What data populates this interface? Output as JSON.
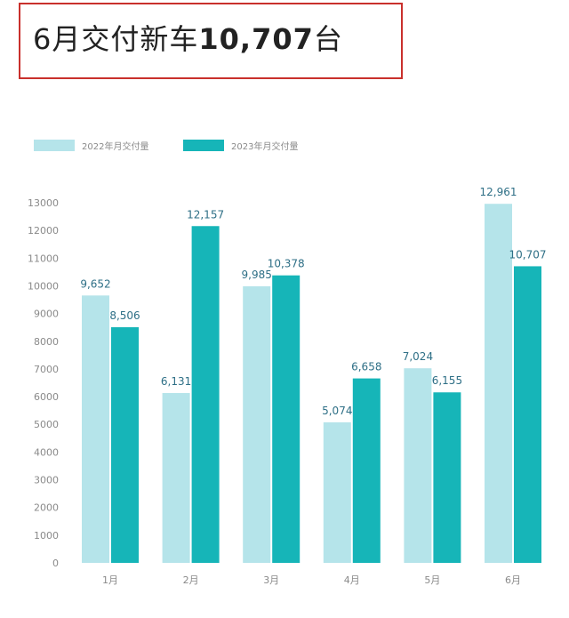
{
  "header": {
    "title_prefix": "6月交付新车",
    "title_number": "10,707",
    "title_suffix": "台"
  },
  "colors": {
    "series_2022": "#b5e4ea",
    "series_2023": "#16b5b8",
    "title_border": "#c9302c",
    "axis_text": "#8a8a8a",
    "label_text": "#2e6f86"
  },
  "chart_data": {
    "type": "bar",
    "categories": [
      "1月",
      "2月",
      "3月",
      "4月",
      "5月",
      "6月"
    ],
    "series": [
      {
        "name": "2022年月交付量",
        "values": [
          9652,
          6131,
          9985,
          5074,
          7024,
          12961
        ]
      },
      {
        "name": "2023年月交付量",
        "values": [
          8506,
          12157,
          10378,
          6658,
          6155,
          10707
        ]
      }
    ],
    "data_labels": [
      [
        "9,652",
        "6,131",
        "9,985",
        "5,074",
        "7,024",
        "12,961"
      ],
      [
        "8,506",
        "12,157",
        "10,378",
        "6,658",
        "6,155",
        "10,707"
      ]
    ],
    "ylim": [
      0,
      13000
    ],
    "yticks": [
      0,
      1000,
      2000,
      3000,
      4000,
      5000,
      6000,
      7000,
      8000,
      9000,
      10000,
      11000,
      12000,
      13000
    ],
    "grid": false,
    "legend_position": "top-left",
    "title": "",
    "xlabel": "",
    "ylabel": ""
  }
}
